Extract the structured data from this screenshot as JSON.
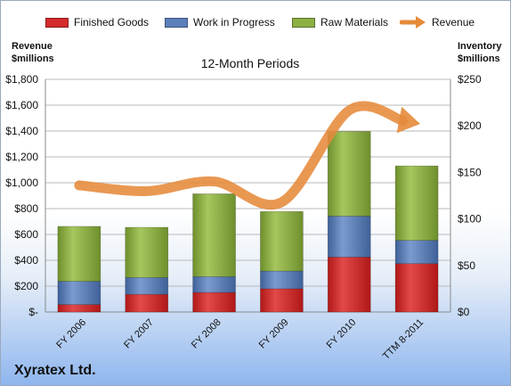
{
  "company": "Xyratex Ltd.",
  "subtitle": "12-Month Periods",
  "left_axis_title": [
    "Revenue",
    "$millions"
  ],
  "right_axis_title": [
    "Inventory",
    "$millions"
  ],
  "legend": {
    "finished": "Finished Goods",
    "wip": "Work in Progress",
    "raw": "Raw Materials",
    "revenue": "Revenue"
  },
  "colors": {
    "finished": "#d42b2b",
    "wip": "#5b7fb9",
    "raw": "#8db043",
    "revenue": "#e68a3a"
  },
  "chart_data": {
    "type": "bar",
    "stacked": true,
    "title": "12-Month Periods",
    "categories": [
      "FY 2006",
      "FY 2007",
      "FY 2008",
      "FY 2009",
      "FY 2010",
      "TTM 8-2011"
    ],
    "series": [
      {
        "name": "Finished Goods",
        "axis": "right",
        "values": [
          8,
          19,
          21,
          25,
          59,
          52
        ]
      },
      {
        "name": "Work in Progress",
        "axis": "right",
        "values": [
          25,
          18,
          17,
          19,
          44,
          25
        ]
      },
      {
        "name": "Raw Materials",
        "axis": "right",
        "values": [
          59,
          54,
          89,
          64,
          91,
          80
        ]
      },
      {
        "name": "Revenue",
        "type": "line",
        "axis": "left",
        "values": [
          980,
          935,
          1010,
          850,
          1560,
          1460
        ]
      }
    ],
    "y_left": {
      "label": "Revenue $millions",
      "min": 0,
      "max": 1800,
      "step": 200,
      "ticks": [
        "$-",
        "$200",
        "$400",
        "$600",
        "$800",
        "$1,000",
        "$1,200",
        "$1,400",
        "$1,600",
        "$1,800"
      ]
    },
    "y_right": {
      "label": "Inventory $millions",
      "min": 0,
      "max": 250,
      "step": 50,
      "ticks": [
        "$0",
        "$50",
        "$100",
        "$150",
        "$200",
        "$250"
      ]
    },
    "grid": true,
    "legend_position": "top"
  }
}
